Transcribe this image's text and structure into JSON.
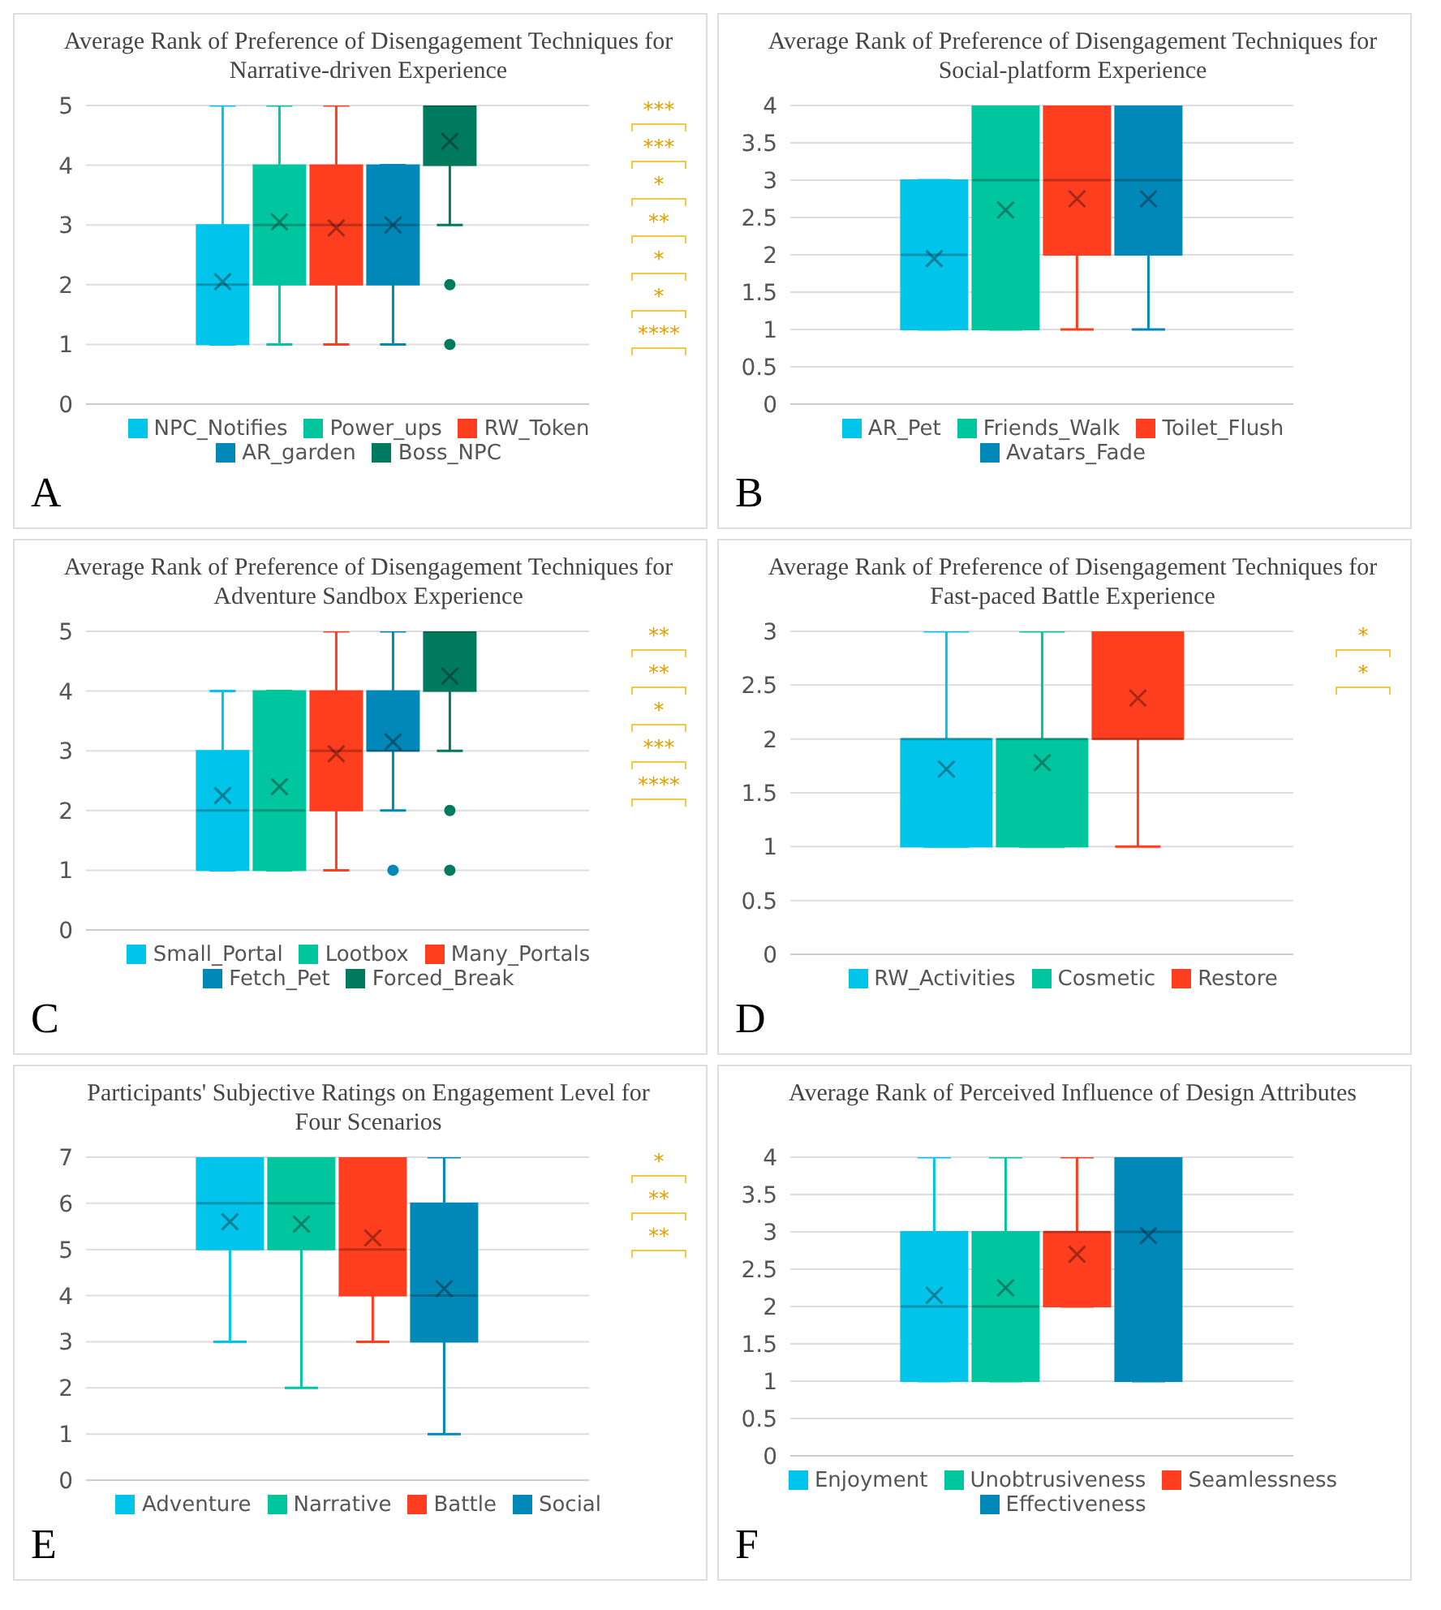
{
  "chart_data": [
    {
      "type": "box",
      "title": "Average Rank of Preference of Disengagement Techniques for Narrative-driven Experience",
      "categories": [
        null
      ],
      "ylim": [
        0,
        5
      ],
      "yticks": [
        0,
        1,
        2,
        3,
        4,
        5
      ],
      "grid": "y",
      "legend": "bottom",
      "tick_labels": "y",
      "series": [
        {
          "name": "NPC_Notifies",
          "color": "#00c4ea",
          "boxes": [
            {
              "low": 1,
              "q1": 1,
              "median": 2,
              "q3": 3,
              "high": 5,
              "mean": 2.05
            }
          ]
        },
        {
          "name": "Power_ups",
          "color": "#00c6a0",
          "boxes": [
            {
              "low": 1,
              "q1": 2,
              "median": 3,
              "q3": 4,
              "high": 5,
              "mean": 3.05
            }
          ]
        },
        {
          "name": "RW_Token",
          "color": "#ff3d1f",
          "boxes": [
            {
              "low": 1,
              "q1": 2,
              "median": 3,
              "q3": 4,
              "high": 5,
              "mean": 2.95
            }
          ]
        },
        {
          "name": "AR_garden",
          "color": "#0088b8",
          "boxes": [
            {
              "low": 1,
              "q1": 2,
              "median": 3,
              "q3": 4,
              "high": 4,
              "mean": 3
            }
          ]
        },
        {
          "name": "Boss_NPC",
          "color": "#007a5e",
          "boxes": [
            {
              "low": 3,
              "q1": 4,
              "median": 5,
              "q3": 5,
              "high": 5,
              "mean": 4.4,
              "outliers": [
                2,
                1
              ]
            }
          ]
        }
      ],
      "annotations": [
        "A",
        "***",
        "***",
        "*",
        "**",
        "*",
        "*",
        "****"
      ]
    },
    {
      "type": "box",
      "title": "Average Rank of Preference of Disengagement Techniques for Social-platform Experience",
      "categories": [
        null
      ],
      "ylim": [
        0,
        4
      ],
      "yticks": [
        0,
        0.5,
        1,
        1.5,
        2,
        2.5,
        3,
        3.5,
        4
      ],
      "grid": "y",
      "legend": "bottom",
      "tick_labels": "y",
      "series": [
        {
          "name": "AR_Pet",
          "color": "#00c4ea",
          "boxes": [
            {
              "low": 1,
              "q1": 1,
              "median": 2,
              "q3": 3,
              "high": 3,
              "mean": 1.95
            }
          ]
        },
        {
          "name": "Friends_Walk",
          "color": "#00c6a0",
          "boxes": [
            {
              "low": 1,
              "q1": 1,
              "median": 3,
              "q3": 4,
              "high": 4,
              "mean": 2.6
            }
          ]
        },
        {
          "name": "Toilet_Flush",
          "color": "#ff3d1f",
          "boxes": [
            {
              "low": 1,
              "q1": 2,
              "median": 3,
              "q3": 4,
              "high": 4,
              "mean": 2.75
            }
          ]
        },
        {
          "name": "Avatars_Fade",
          "color": "#0088b8",
          "boxes": [
            {
              "low": 1,
              "q1": 2,
              "median": 3,
              "q3": 4,
              "high": 4,
              "mean": 2.75
            }
          ]
        }
      ],
      "annotations": [
        "B"
      ]
    },
    {
      "type": "box",
      "title": "Average Rank of Preference of  Disengagement Techniques for Adventure Sandbox Experience",
      "categories": [
        null
      ],
      "ylim": [
        0,
        5
      ],
      "yticks": [
        0,
        1,
        2,
        3,
        4,
        5
      ],
      "grid": "y",
      "legend": "bottom",
      "tick_labels": "y",
      "series": [
        {
          "name": "Small_Portal",
          "color": "#00c4ea",
          "boxes": [
            {
              "low": 1,
              "q1": 1,
              "median": 2,
              "q3": 3,
              "high": 4,
              "mean": 2.25
            }
          ]
        },
        {
          "name": "Lootbox",
          "color": "#00c6a0",
          "boxes": [
            {
              "low": 1,
              "q1": 1,
              "median": 2,
              "q3": 4,
              "high": 4,
              "mean": 2.4
            }
          ]
        },
        {
          "name": "Many_Portals",
          "color": "#ff3d1f",
          "boxes": [
            {
              "low": 1,
              "q1": 2,
              "median": 3,
              "q3": 4,
              "high": 5,
              "mean": 2.95
            }
          ]
        },
        {
          "name": "Fetch_Pet",
          "color": "#0088b8",
          "boxes": [
            {
              "low": 2,
              "q1": 3,
              "median": 3,
              "q3": 4,
              "high": 5,
              "mean": 3.15,
              "outliers": [
                1
              ]
            }
          ]
        },
        {
          "name": "Forced_Break",
          "color": "#007a5e",
          "boxes": [
            {
              "low": 3,
              "q1": 4,
              "median": 5,
              "q3": 5,
              "high": 5,
              "mean": 4.25,
              "outliers": [
                2,
                1
              ]
            }
          ]
        }
      ],
      "annotations": [
        "C",
        "**",
        "**",
        "*",
        "***",
        "****"
      ]
    },
    {
      "type": "box",
      "title": "Average Rank of Preference of Disengagement Techniques for Fast-paced Battle Experience",
      "categories": [
        null
      ],
      "ylim": [
        0,
        3
      ],
      "yticks": [
        0,
        0.5,
        1,
        1.5,
        2,
        2.5,
        3
      ],
      "grid": "y",
      "legend": "bottom",
      "tick_labels": "y",
      "series": [
        {
          "name": "RW_Activities",
          "color": "#00c4ea",
          "boxes": [
            {
              "low": 1,
              "q1": 1,
              "median": 2,
              "q3": 2,
              "high": 3,
              "mean": 1.72
            }
          ]
        },
        {
          "name": "Cosmetic",
          "color": "#00c6a0",
          "boxes": [
            {
              "low": 1,
              "q1": 1,
              "median": 2,
              "q3": 2,
              "high": 3,
              "mean": 1.78
            }
          ]
        },
        {
          "name": "Restore",
          "color": "#ff3d1f",
          "boxes": [
            {
              "low": 1,
              "q1": 2,
              "median": 2,
              "q3": 3,
              "high": 3,
              "mean": 2.38
            }
          ]
        }
      ],
      "annotations": [
        "D",
        "*",
        "*"
      ]
    },
    {
      "type": "box",
      "title": "Participants' Subjective Ratings on Engagement Level for Four Scenarios",
      "categories": [
        null
      ],
      "ylim": [
        0,
        7
      ],
      "yticks": [
        0,
        1,
        2,
        3,
        4,
        5,
        6,
        7
      ],
      "grid": "y",
      "legend": "bottom",
      "tick_labels": "y",
      "series": [
        {
          "name": "Adventure",
          "color": "#00c4ea",
          "boxes": [
            {
              "low": 3,
              "q1": 5,
              "median": 6,
              "q3": 7,
              "high": 7,
              "mean": 5.6
            }
          ]
        },
        {
          "name": "Narrative",
          "color": "#00c6a0",
          "boxes": [
            {
              "low": 2,
              "q1": 5,
              "median": 6,
              "q3": 7,
              "high": 7,
              "mean": 5.55
            }
          ]
        },
        {
          "name": "Battle",
          "color": "#ff3d1f",
          "boxes": [
            {
              "low": 3,
              "q1": 4,
              "median": 5,
              "q3": 7,
              "high": 7,
              "mean": 5.25
            }
          ]
        },
        {
          "name": "Social",
          "color": "#0088b8",
          "boxes": [
            {
              "low": 1,
              "q1": 3,
              "median": 4,
              "q3": 6,
              "high": 7,
              "mean": 4.15
            }
          ]
        }
      ],
      "annotations": [
        "E",
        "*",
        "**",
        "**"
      ]
    },
    {
      "type": "box",
      "title": "Average Rank of  Perceived Influence of Design Attributes",
      "categories": [
        null
      ],
      "ylim": [
        0,
        4
      ],
      "yticks": [
        0,
        0.5,
        1,
        1.5,
        2,
        2.5,
        3,
        3.5,
        4
      ],
      "grid": "y",
      "legend": "bottom",
      "tick_labels": "y",
      "series": [
        {
          "name": "Enjoyment",
          "color": "#00c4ea",
          "boxes": [
            {
              "low": 1,
              "q1": 1,
              "median": 2,
              "q3": 3,
              "high": 4,
              "mean": 2.15
            }
          ]
        },
        {
          "name": "Unobtrusiveness",
          "color": "#00c6a0",
          "boxes": [
            {
              "low": 1,
              "q1": 1,
              "median": 2,
              "q3": 3,
              "high": 4,
              "mean": 2.25
            }
          ]
        },
        {
          "name": "Seamlessness",
          "color": "#ff3d1f",
          "boxes": [
            {
              "low": 2,
              "q1": 2,
              "median": 3,
              "q3": 3,
              "high": 4,
              "mean": 2.7
            }
          ]
        },
        {
          "name": "Effectiveness",
          "color": "#0088b8",
          "boxes": [
            {
              "low": 1,
              "q1": 1,
              "median": 3,
              "q3": 4,
              "high": 4,
              "mean": 2.95
            }
          ]
        }
      ],
      "annotations": [
        "F"
      ]
    }
  ]
}
